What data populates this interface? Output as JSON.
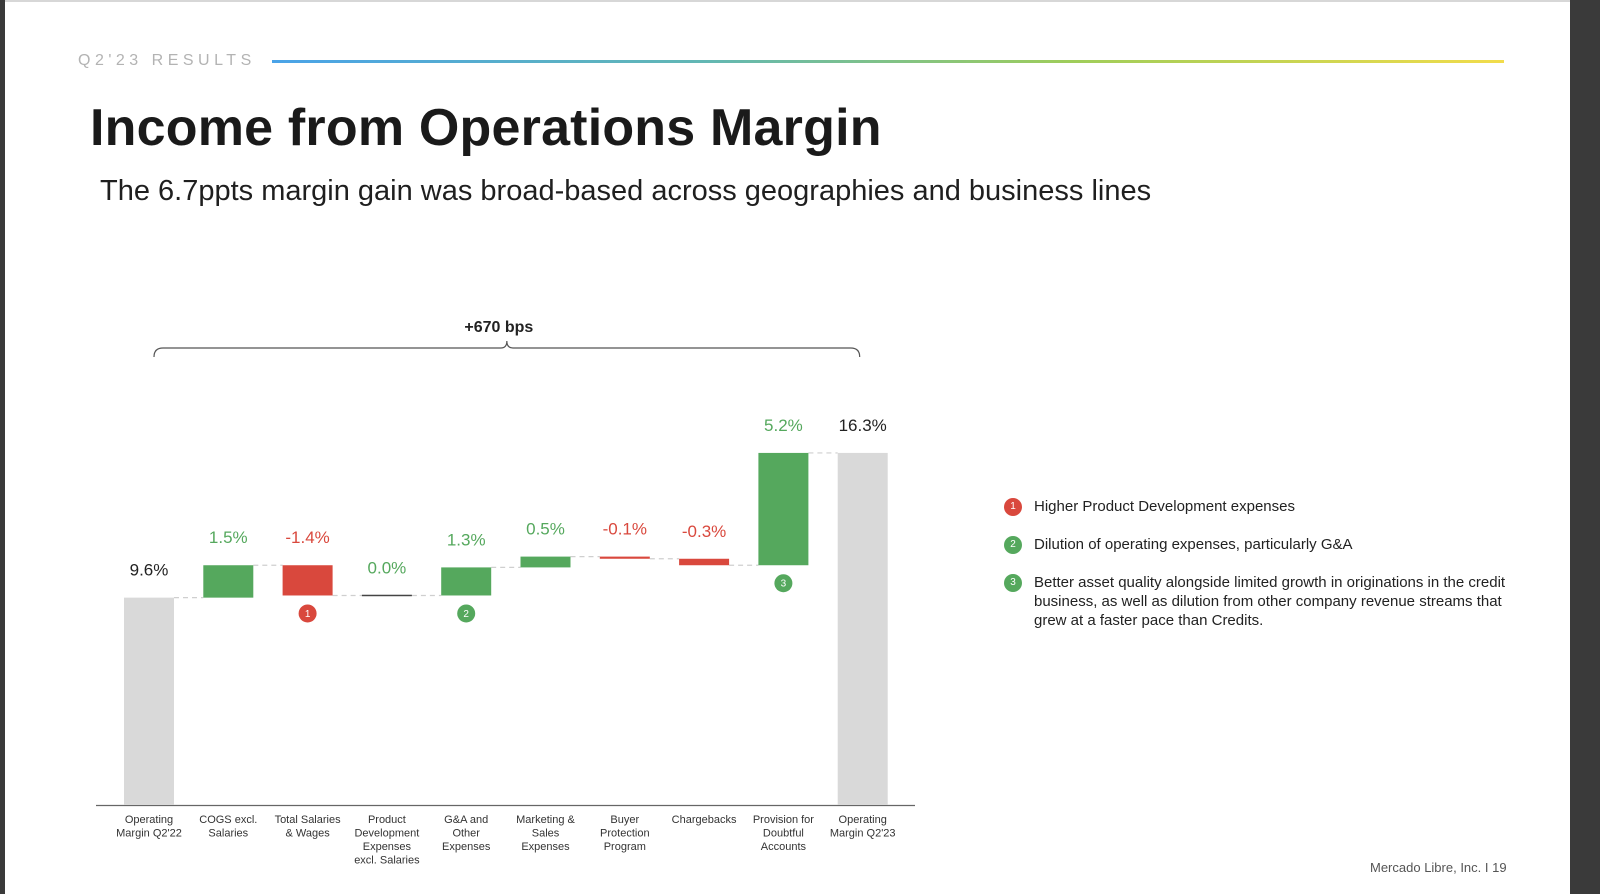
{
  "header": {
    "section_label": "Q2'23 RESULTS",
    "title": "Income from Operations Margin",
    "subtitle": "The 6.7ppts margin gain was broad-based across geographies and business lines"
  },
  "chart_data": {
    "type": "waterfall",
    "unit": "%",
    "categories": [
      [
        "Operating",
        "Margin Q2'22"
      ],
      [
        "COGS excl.",
        "Salaries"
      ],
      [
        "Total Salaries",
        "& Wages"
      ],
      [
        "Product",
        "Development",
        "Expenses",
        "excl. Salaries"
      ],
      [
        "G&A and",
        "Other",
        "Expenses"
      ],
      [
        "Marketing &",
        "Sales",
        "Expenses"
      ],
      [
        "Buyer",
        "Protection",
        "Program"
      ],
      [
        "Chargebacks"
      ],
      [
        "Provision for",
        "Doubtful",
        "Accounts"
      ],
      [
        "Operating",
        "Margin Q2'23"
      ]
    ],
    "values": [
      9.6,
      1.5,
      -1.4,
      0.0,
      1.3,
      0.5,
      -0.1,
      -0.3,
      5.2,
      16.3
    ],
    "value_labels": [
      "9.6%",
      "1.5%",
      "-1.4%",
      "0.0%",
      "1.3%",
      "0.5%",
      "-0.1%",
      "-0.3%",
      "5.2%",
      "16.3%"
    ],
    "kinds": [
      "total",
      "delta",
      "delta",
      "delta",
      "delta",
      "delta",
      "delta",
      "delta",
      "delta",
      "total"
    ],
    "markers": [
      null,
      null,
      "1",
      null,
      "2",
      null,
      null,
      null,
      "3",
      null
    ],
    "bracket_label": "+670 bps",
    "colors": {
      "positive": "#55a85d",
      "negative": "#d9483d",
      "total": "#d9d9d9"
    }
  },
  "legend": {
    "items": [
      {
        "marker": "1",
        "color": "#d9483d",
        "text": "Higher Product Development expenses"
      },
      {
        "marker": "2",
        "color": "#55a85d",
        "text": "Dilution of operating expenses, particularly G&A"
      },
      {
        "marker": "3",
        "color": "#55a85d",
        "text": "Better asset quality alongside limited growth in originations in the credit business, as well as dilution from other company revenue streams that grew at a faster pace than Credits."
      }
    ]
  },
  "footer": {
    "text": "Mercado Libre, Inc.  I  19"
  }
}
